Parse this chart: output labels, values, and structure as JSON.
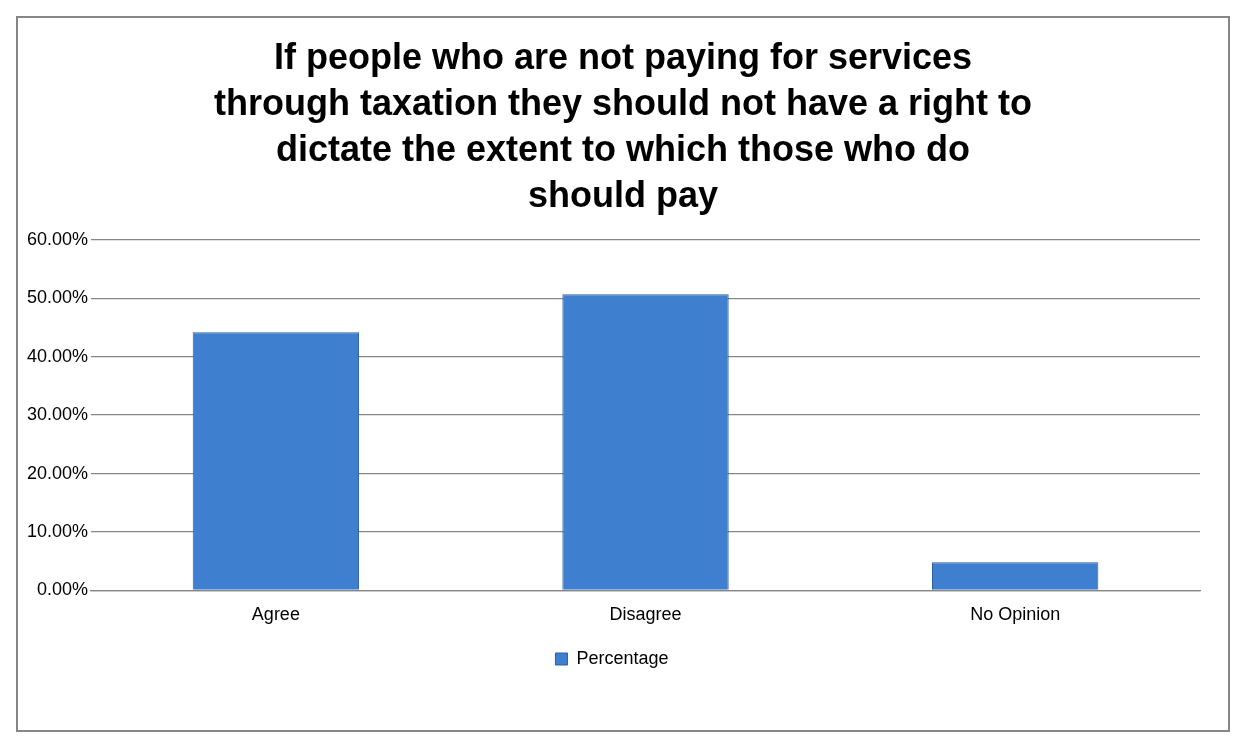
{
  "chart_data": {
    "type": "bar",
    "title": "If people who are not paying for services through taxation they should not have a right to dictate the extent to which those who do should pay",
    "categories": [
      "Agree",
      "Disagree",
      "No Opinion"
    ],
    "series": [
      {
        "name": "Percentage",
        "color": "#3f7fcf",
        "values": [
          44.2,
          50.7,
          4.8
        ]
      }
    ],
    "ylim": [
      0,
      60
    ],
    "yticks": [
      {
        "value": 0,
        "label": "0.00%"
      },
      {
        "value": 10,
        "label": "10.00%"
      },
      {
        "value": 20,
        "label": "20.00%"
      },
      {
        "value": 30,
        "label": "30.00%"
      },
      {
        "value": 40,
        "label": "40.00%"
      },
      {
        "value": 50,
        "label": "50.00%"
      },
      {
        "value": 60,
        "label": "60.00%"
      }
    ],
    "grid": "y",
    "legend": "bottom"
  }
}
